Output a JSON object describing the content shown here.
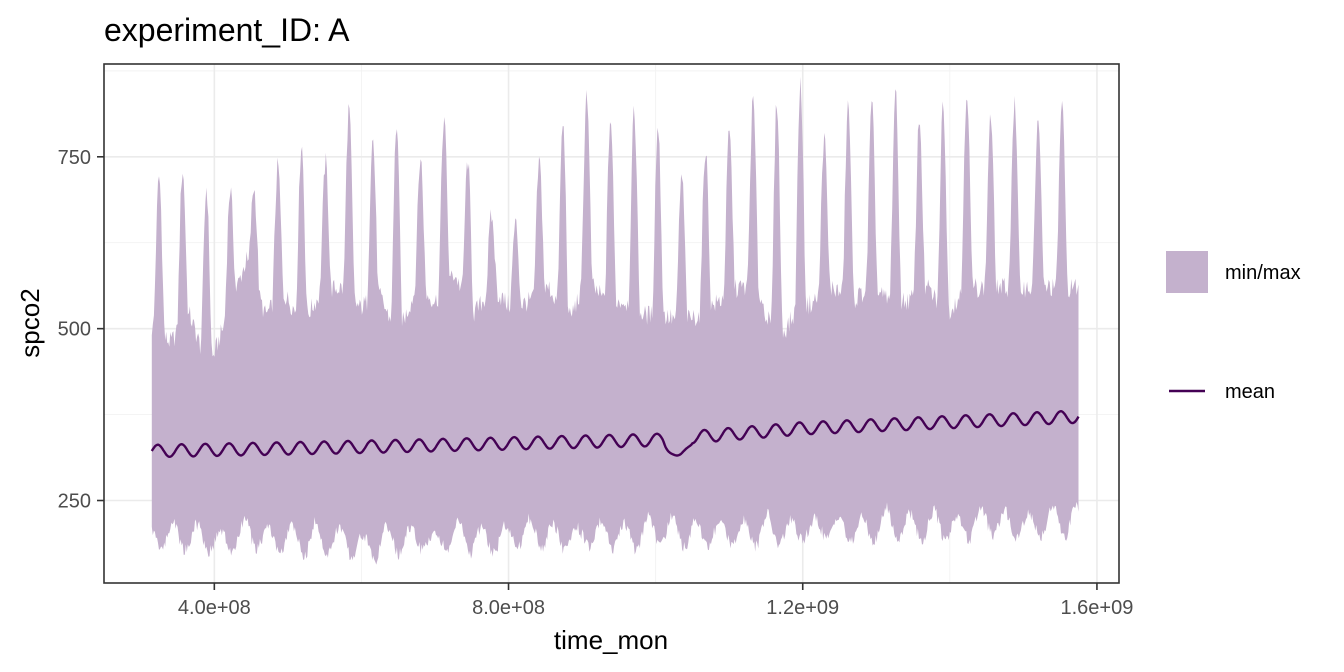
{
  "chart_data": {
    "type": "area",
    "title": "experiment_ID: A",
    "xlabel": "time_mon",
    "ylabel": "spco2",
    "xlim": [
      250000000,
      1630000000
    ],
    "ylim": [
      130,
      885
    ],
    "x_ticks": [
      400000000,
      800000000,
      1200000000,
      1600000000
    ],
    "x_tick_labels": [
      "4.0e+08",
      "8.0e+08",
      "1.2e+09",
      "1.6e+09"
    ],
    "y_ticks": [
      250,
      500,
      750
    ],
    "y_tick_labels": [
      "250",
      "500",
      "750"
    ],
    "grid": true,
    "legend_position": "right",
    "x_range": [
      315000000,
      1575000000
    ],
    "annual_cycles": 39,
    "ribbon_peaks": [
      695,
      765,
      710,
      705,
      700,
      715,
      690,
      760,
      770,
      720,
      845,
      790,
      770,
      800,
      730,
      820,
      790,
      725,
      660,
      640,
      700,
      790,
      800,
      845,
      800,
      820,
      810,
      790,
      720,
      760,
      770,
      800,
      840,
      830,
      880,
      800,
      760,
      840,
      820,
      860,
      800,
      810,
      830,
      850,
      820,
      790,
      850,
      800,
      830,
      820
    ],
    "ribbon_troughs": [
      500,
      480,
      520,
      440,
      520,
      600,
      520,
      550,
      510,
      555,
      560,
      530,
      550,
      490,
      560,
      540,
      580,
      520,
      560,
      530,
      540,
      560,
      510,
      570,
      540,
      540,
      520,
      520,
      510,
      520,
      540,
      560,
      560,
      480,
      520,
      540,
      560,
      540,
      560,
      540,
      540,
      560,
      520,
      560,
      560,
      560,
      560,
      560,
      560,
      560
    ],
    "ribbon_min_peaks": [
      210,
      220,
      215,
      205,
      225,
      210,
      215,
      220,
      210,
      200,
      215,
      210,
      205,
      220,
      210,
      215,
      225,
      215,
      210,
      220,
      215,
      230,
      225,
      220,
      215,
      225,
      230,
      220,
      225,
      230,
      225,
      240,
      230,
      235,
      230,
      240,
      235,
      230,
      245,
      240
    ],
    "ribbon_min_troughs": [
      185,
      175,
      180,
      170,
      180,
      175,
      170,
      165,
      175,
      160,
      170,
      175,
      180,
      175,
      170,
      180,
      185,
      175,
      180,
      185,
      175,
      180,
      185,
      180,
      190,
      185,
      180,
      190,
      195,
      190,
      185,
      195,
      190,
      195,
      190,
      200,
      195,
      200,
      195,
      200
    ],
    "mean_base": [
      320,
      340
    ],
    "mean_drop": {
      "x_start": 1010000000,
      "x_end": 1050000000,
      "min": 312
    },
    "mean_end": [
      390,
      365
    ],
    "mean_trend": [
      [
        315000000,
        322
      ],
      [
        600000000,
        328
      ],
      [
        1000000000,
        338
      ],
      [
        1200000000,
        355
      ],
      [
        1575000000,
        372
      ]
    ],
    "mean_seasonal_amplitude": 9,
    "series": [
      {
        "name": "min/max",
        "kind": "ribbon",
        "color": "#c4b1cd"
      },
      {
        "name": "mean",
        "kind": "line",
        "color": "#440154"
      }
    ]
  }
}
